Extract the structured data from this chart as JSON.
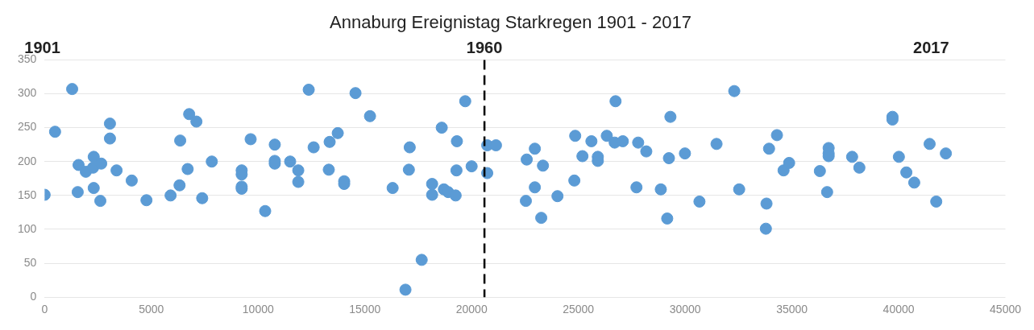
{
  "chart_data": {
    "type": "scatter",
    "title": "Annaburg Ereignistag Starkregen 1901 - 2017",
    "x": [
      0,
      490,
      1290,
      1590,
      1550,
      1930,
      2300,
      2270,
      2300,
      2650,
      2610,
      3060,
      3060,
      3370,
      4080,
      4770,
      5900,
      6320,
      6350,
      6700,
      6770,
      7110,
      7380,
      7830,
      9230,
      9230,
      9230,
      9230,
      9650,
      10330,
      10780,
      10780,
      10780,
      11500,
      11880,
      11880,
      12370,
      12600,
      13350,
      13310,
      13730,
      14030,
      14030,
      14560,
      15240,
      16300,
      16900,
      17060,
      17100,
      17660,
      18150,
      18150,
      18600,
      18700,
      18900,
      19250,
      19290,
      19310,
      19700,
      20000,
      20730,
      20730,
      21140,
      22540,
      22580,
      22960,
      22960,
      23260,
      23340,
      24020,
      24810,
      24850,
      25190,
      25610,
      25910,
      25910,
      26330,
      26700,
      26740,
      27080,
      27720,
      27800,
      28180,
      28860,
      29160,
      29240,
      29310,
      29990,
      30670,
      31470,
      32300,
      32530,
      33810,
      33780,
      33930,
      34300,
      34610,
      34870,
      36310,
      36650,
      36720,
      36720,
      36720,
      37820,
      38160,
      39710,
      39710,
      40010,
      40360,
      40730,
      41450,
      41760,
      42210
    ],
    "series": [
      {
        "color": "#5b9bd5",
        "values": [
          151,
          244,
          307,
          195,
          155,
          185,
          207,
          191,
          161,
          197,
          142,
          256,
          234,
          187,
          172,
          143,
          150,
          165,
          231,
          189,
          270,
          259,
          146,
          200,
          187,
          181,
          163,
          160,
          233,
          127,
          225,
          201,
          197,
          200,
          187,
          170,
          306,
          221,
          229,
          188,
          242,
          171,
          167,
          301,
          267,
          161,
          11,
          188,
          221,
          55,
          167,
          151,
          250,
          159,
          155,
          150,
          187,
          230,
          289,
          193,
          183,
          224,
          224,
          142,
          203,
          219,
          162,
          117,
          194,
          149,
          172,
          238,
          208,
          230,
          207,
          201,
          238,
          228,
          289,
          230,
          162,
          228,
          215,
          159,
          116,
          205,
          266,
          212,
          141,
          226,
          304,
          159,
          138,
          101,
          219,
          239,
          187,
          198,
          186,
          155,
          220,
          212,
          208,
          207,
          191,
          266,
          262,
          207,
          184,
          169,
          226,
          141,
          212
        ]
      }
    ],
    "xlim": [
      0,
      45000
    ],
    "xticks": [
      0,
      5000,
      10000,
      15000,
      20000,
      25000,
      30000,
      35000,
      40000,
      45000
    ],
    "ylim": [
      0,
      350
    ],
    "yticks": [
      0,
      50,
      100,
      150,
      200,
      250,
      300,
      350
    ],
    "grid": "y",
    "marker": "circle",
    "legend": false,
    "ref_lines": [
      {
        "axis": "x",
        "value": 20600,
        "color": "#000000",
        "line_style": "dashed"
      }
    ],
    "annotations": [
      "1901",
      "1960",
      "2017"
    ]
  }
}
